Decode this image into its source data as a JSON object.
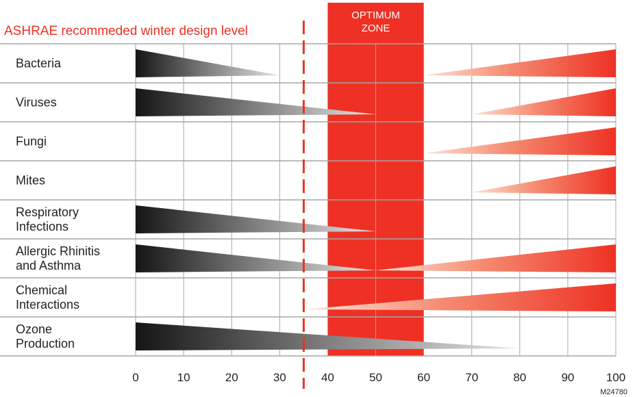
{
  "chart_data": {
    "type": "bar",
    "xlim": [
      0,
      100
    ],
    "x_ticks": [
      "0",
      "10",
      "20",
      "30",
      "40",
      "50",
      "60",
      "70",
      "80",
      "90",
      "100"
    ],
    "grid": true,
    "optimum_zone": {
      "label_line1": "OPTIMUM",
      "label_line2": "ZONE",
      "from": 40,
      "to": 60
    },
    "reference_line": {
      "label": "ASHRAE recommeded winter design level",
      "x": 35
    },
    "figure_code": "M24780",
    "colors": {
      "accent": "#ee3124",
      "dark": "#1a1a1a",
      "grid": "#a6a6a6",
      "text": "#231f20"
    },
    "rows": [
      {
        "label": [
          "Bacteria"
        ],
        "low": {
          "from": 0,
          "to": 30
        },
        "high": {
          "from": 60,
          "to": 100
        }
      },
      {
        "label": [
          "Viruses"
        ],
        "low": {
          "from": 0,
          "to": 50
        },
        "high": {
          "from": 70,
          "to": 100
        }
      },
      {
        "label": [
          "Fungi"
        ],
        "low": null,
        "high": {
          "from": 60,
          "to": 100
        }
      },
      {
        "label": [
          "Mites"
        ],
        "low": null,
        "high": {
          "from": 70,
          "to": 100
        }
      },
      {
        "label": [
          "Respiratory",
          "Infections"
        ],
        "low": {
          "from": 0,
          "to": 50
        },
        "high": null
      },
      {
        "label": [
          "Allergic Rhinitis",
          "and Asthma"
        ],
        "low": {
          "from": 0,
          "to": 50
        },
        "high": {
          "from": 50,
          "to": 100
        }
      },
      {
        "label": [
          "Chemical",
          "Interactions"
        ],
        "low": null,
        "high": {
          "from": 35,
          "to": 100
        }
      },
      {
        "label": [
          "Ozone",
          "Production"
        ],
        "low": {
          "from": 0,
          "to": 80
        },
        "high": null
      }
    ]
  }
}
